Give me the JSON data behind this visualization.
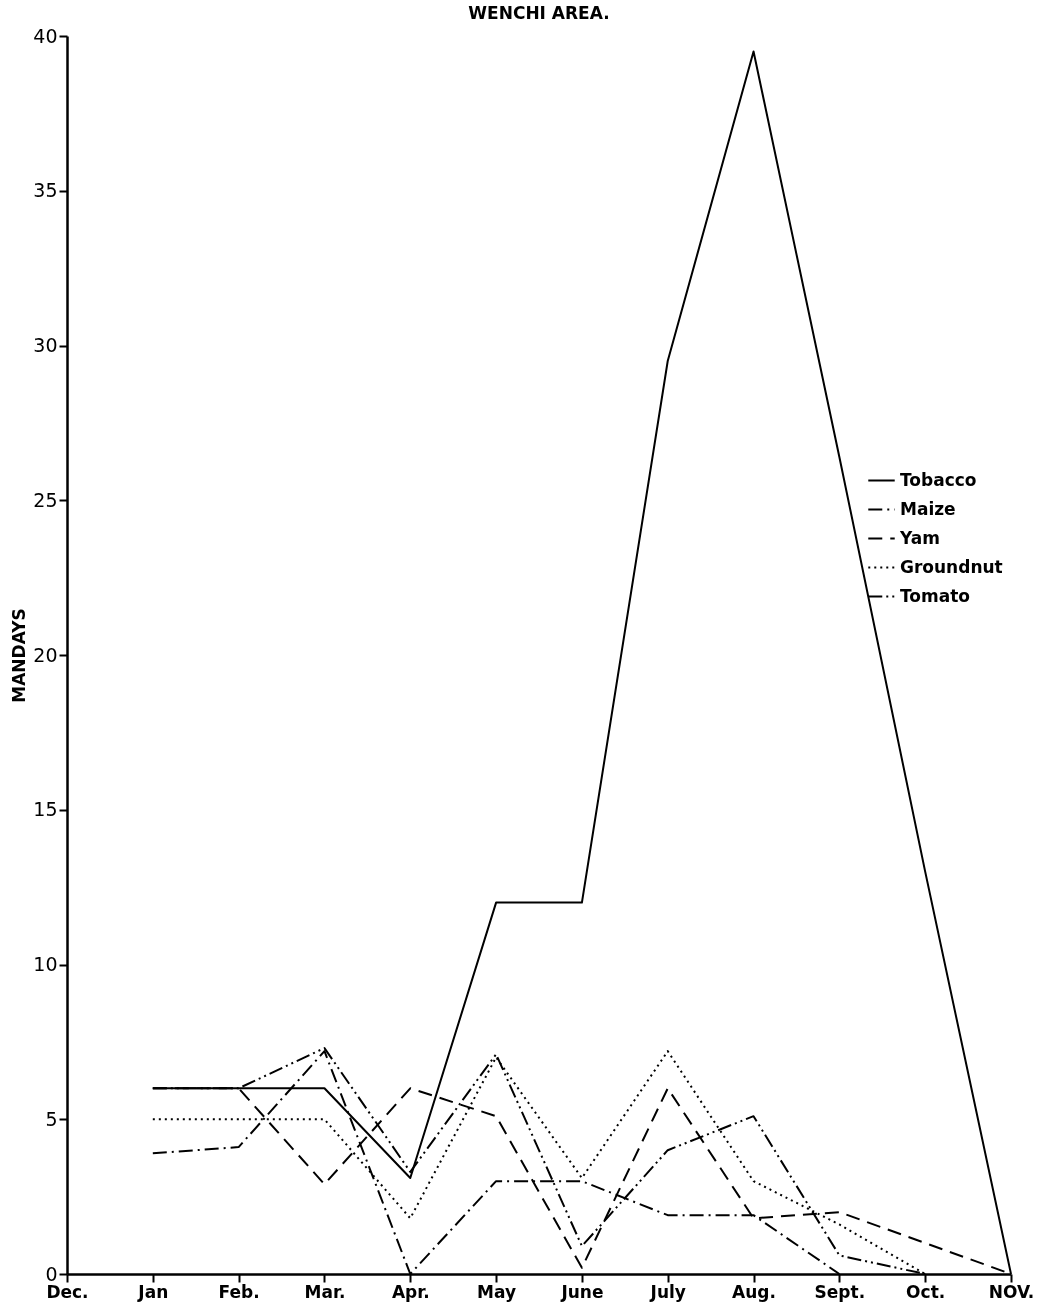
{
  "chart_data": {
    "type": "line",
    "title": "WENCHI AREA.",
    "ylabel": "MANDAYS",
    "categories": [
      "Dec.",
      "Jan",
      "Feb.",
      "Mar.",
      "Apr.",
      "May",
      "June",
      "July",
      "Aug.",
      "Sept.",
      "Oct.",
      "NOV."
    ],
    "series": [
      {
        "name": "Tobacco",
        "color": "#000000",
        "line_style": "solid",
        "values": [
          null,
          6,
          6,
          6,
          3.1,
          12,
          12,
          29.5,
          39.5,
          26.4,
          13,
          0
        ]
      },
      {
        "name": "Maize",
        "color": "#000000",
        "line_style": "dashdot",
        "values": [
          null,
          3.9,
          4.1,
          7.2,
          0,
          3,
          3,
          1.9,
          1.9,
          0,
          null,
          null
        ]
      },
      {
        "name": "Yam",
        "color": "#000000",
        "line_style": "dashed",
        "values": [
          null,
          6,
          6,
          2.9,
          6,
          5.1,
          0.2,
          6,
          1.8,
          2,
          1,
          0
        ]
      },
      {
        "name": "Groundnut",
        "color": "#000000",
        "line_style": "dotted",
        "values": [
          null,
          5,
          5,
          5,
          1.8,
          7,
          3.1,
          7.2,
          3,
          1.6,
          0,
          null
        ]
      },
      {
        "name": "Tomato",
        "color": "#000000",
        "line_style": "dashdotdot",
        "values": [
          null,
          6,
          6,
          7.3,
          3.3,
          7.1,
          0.9,
          4,
          5.1,
          0.6,
          0,
          null
        ]
      }
    ],
    "ylim": [
      0,
      40
    ],
    "yticks": [
      0,
      5,
      10,
      15,
      20,
      25,
      30,
      35,
      40
    ],
    "grid": false,
    "legend": "right"
  }
}
